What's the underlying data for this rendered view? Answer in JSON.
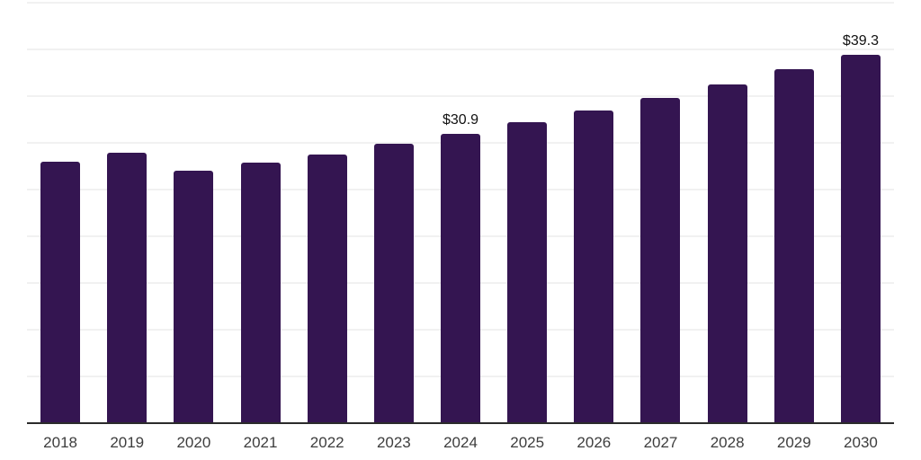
{
  "chart_data": {
    "type": "bar",
    "title": "",
    "xlabel": "",
    "ylabel": "",
    "categories": [
      "2018",
      "2019",
      "2020",
      "2021",
      "2022",
      "2023",
      "2024",
      "2025",
      "2026",
      "2027",
      "2028",
      "2029",
      "2030"
    ],
    "values": [
      27.9,
      28.8,
      26.9,
      27.8,
      28.7,
      29.8,
      30.9,
      32.1,
      33.4,
      34.7,
      36.2,
      37.8,
      39.3
    ],
    "data_labels": [
      null,
      null,
      null,
      null,
      null,
      null,
      "$30.9",
      null,
      null,
      null,
      null,
      null,
      "$39.3"
    ],
    "ylim": [
      0,
      45
    ],
    "gridline_step": 5,
    "grid": "horizontal-only",
    "legend": "none",
    "colors": {
      "bar": "#341551",
      "gridline": "#f1f1f1",
      "axis_line": "#2b2b2b",
      "tick_label": "#3d3d3d",
      "data_label": "#111111",
      "background": "#ffffff"
    }
  }
}
